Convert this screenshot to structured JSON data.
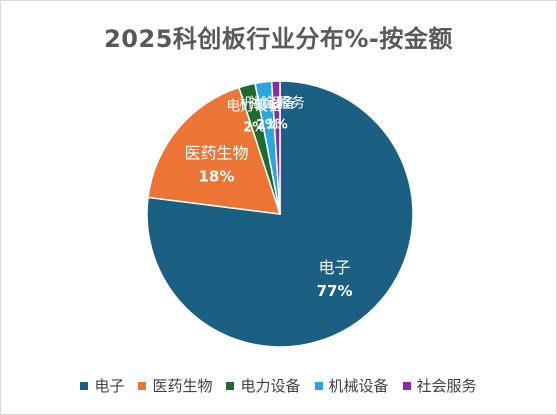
{
  "chart_data": {
    "type": "pie",
    "title": "2025科创板行业分布%-按金额",
    "categories": [
      "电子",
      "医药生物",
      "电力设备",
      "机械设备",
      "社会服务"
    ],
    "values": [
      77,
      18,
      2,
      2,
      1
    ],
    "value_labels": [
      "77%",
      "18%",
      "2%",
      "2%",
      "1%"
    ],
    "colors": [
      "#1b5f82",
      "#ec7434",
      "#1f6b2d",
      "#2aa6de",
      "#8a2aa5"
    ],
    "legend": "bottom"
  }
}
